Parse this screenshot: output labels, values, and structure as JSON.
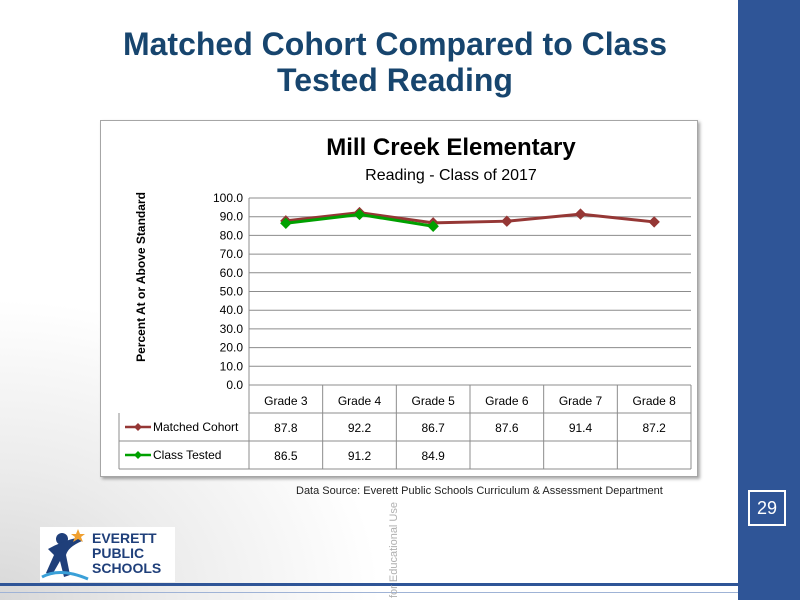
{
  "slide": {
    "title": "Matched Cohort Compared to Class Tested Reading",
    "page_number": "29",
    "data_source": "Data Source: Everett Public Schools Curriculum & Assessment Department",
    "watermark": "for Educational Use",
    "logo_text": [
      "EVERETT",
      "PUBLIC",
      "SCHOOLS"
    ]
  },
  "colors": {
    "matched_cohort": "#953735",
    "class_tested": "#00a000",
    "accent_bar": "#2f5597",
    "title": "#17456e"
  },
  "chart_data": {
    "type": "line",
    "title": "Mill Creek Elementary",
    "subtitle": "Reading - Class of 2017",
    "ylabel": "Percent At or Above Standard",
    "xlabel": "",
    "ylim": [
      0,
      100
    ],
    "yticks": [
      "100.0",
      "90.0",
      "80.0",
      "70.0",
      "60.0",
      "50.0",
      "40.0",
      "30.0",
      "20.0",
      "10.0",
      "0.0"
    ],
    "grid": true,
    "legend": "data table",
    "categories": [
      "Grade 3",
      "Grade 4",
      "Grade 5",
      "Grade 6",
      "Grade 7",
      "Grade 8"
    ],
    "series": [
      {
        "name": "Matched Cohort",
        "values": [
          87.8,
          92.2,
          86.7,
          87.6,
          91.4,
          87.2
        ],
        "labels": [
          "87.8",
          "92.2",
          "86.7",
          "87.6",
          "91.4",
          "87.2"
        ]
      },
      {
        "name": "Class Tested",
        "values": [
          86.5,
          91.2,
          84.9,
          null,
          null,
          null
        ],
        "labels": [
          "86.5",
          "91.2",
          "84.9",
          "",
          "",
          ""
        ]
      }
    ]
  }
}
